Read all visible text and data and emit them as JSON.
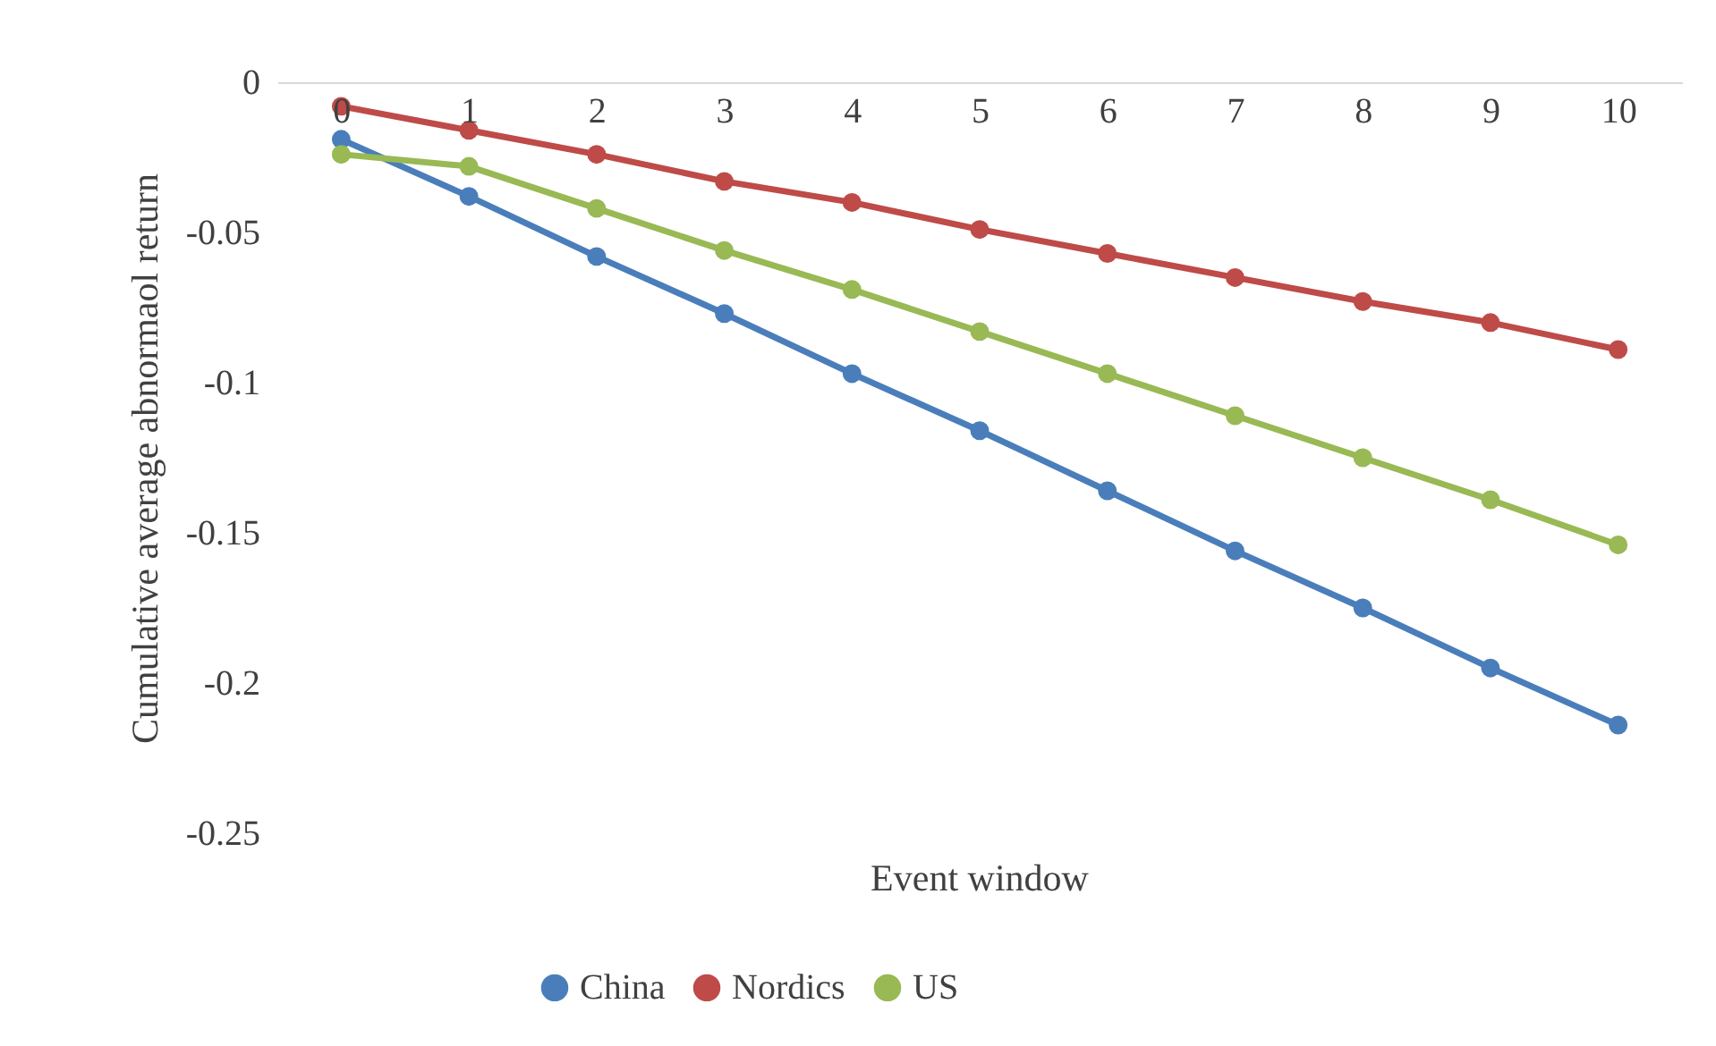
{
  "chart_data": {
    "type": "line",
    "xlabel": "Event window",
    "ylabel": "Cumulative average abnormaol return",
    "categories": [
      "0",
      "1",
      "2",
      "3",
      "4",
      "5",
      "6",
      "7",
      "8",
      "9",
      "10"
    ],
    "series": [
      {
        "name": "China",
        "color": "#4a7ebb",
        "values": [
          -0.019,
          -0.038,
          -0.058,
          -0.077,
          -0.097,
          -0.116,
          -0.136,
          -0.156,
          -0.175,
          -0.195,
          -0.214
        ]
      },
      {
        "name": "Nordics",
        "color": "#be4b48",
        "values": [
          -0.008,
          -0.016,
          -0.024,
          -0.033,
          -0.04,
          -0.049,
          -0.057,
          -0.065,
          -0.073,
          -0.08,
          -0.089
        ]
      },
      {
        "name": "US",
        "color": "#98b954",
        "values": [
          -0.024,
          -0.028,
          -0.042,
          -0.056,
          -0.069,
          -0.083,
          -0.097,
          -0.111,
          -0.125,
          -0.139,
          -0.154
        ]
      }
    ],
    "ylim": [
      -0.25,
      0
    ],
    "yticks": [
      -0.25,
      -0.2,
      -0.15,
      -0.1,
      -0.05,
      0
    ],
    "grid": false,
    "legend": "bottom",
    "marker": "circle",
    "line_style": "solid"
  }
}
